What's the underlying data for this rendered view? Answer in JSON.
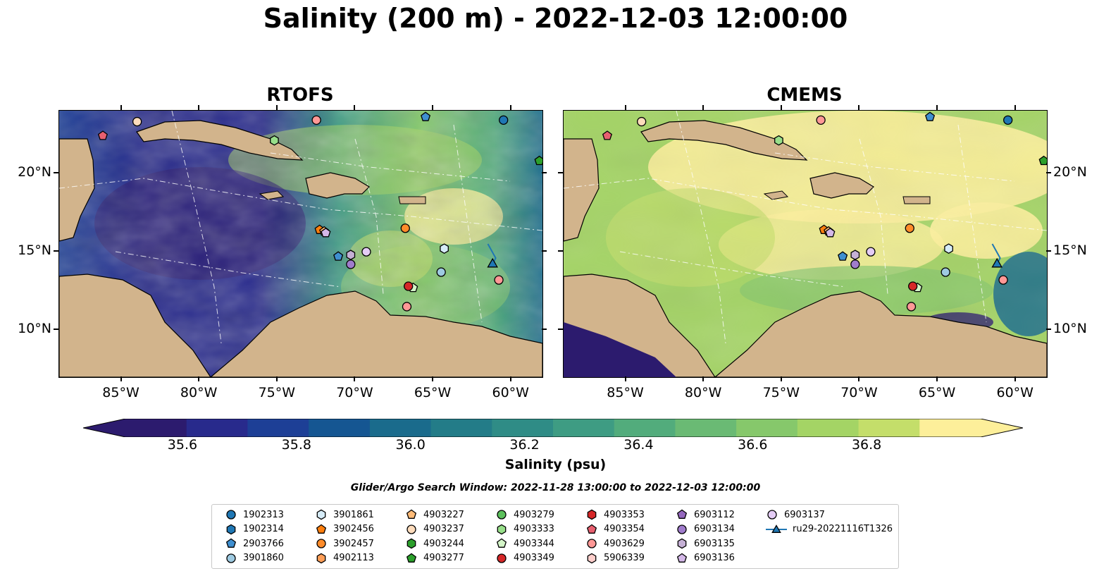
{
  "title": "Salinity (200 m) - 2022-12-03 12:00:00",
  "panels": [
    {
      "title": "RTOFS",
      "style": "rtofs"
    },
    {
      "title": "CMEMS",
      "style": "cmems"
    }
  ],
  "map": {
    "lon_range": [
      -89,
      -58
    ],
    "lat_range": [
      7,
      24
    ],
    "lon_ticks": [
      "85°W",
      "80°W",
      "75°W",
      "70°W",
      "65°W",
      "60°W"
    ],
    "lat_ticks": [
      "20°N",
      "15°N",
      "10°N"
    ],
    "lon_tick_values": [
      -85,
      -80,
      -75,
      -70,
      -65,
      -60
    ],
    "lat_tick_values": [
      20,
      15,
      10
    ],
    "land_color": "#d2b48c",
    "shelf_color": "#91b4e0"
  },
  "colorbar": {
    "label": "Salinity (psu)",
    "min": 35.5,
    "max": 37.0,
    "step": 0.1,
    "ticks": [
      "35.6",
      "35.8",
      "36.0",
      "36.2",
      "36.4",
      "36.6",
      "36.8"
    ],
    "tick_values": [
      35.6,
      35.8,
      36.0,
      36.2,
      36.4,
      36.6,
      36.8
    ],
    "colors": [
      "#2c1b6e",
      "#282a8c",
      "#1d3f96",
      "#155692",
      "#1a6b8c",
      "#237c88",
      "#2f8c86",
      "#3e9c83",
      "#52ac7c",
      "#6aba74",
      "#86c86b",
      "#a4d465",
      "#c4de6a",
      "#fdef9a"
    ],
    "extend_min_color": "#2c1b6e",
    "extend_max_color": "#fdef9a"
  },
  "search_window": "Glider/Argo Search Window: 2022-11-28 13:00:00 to 2022-12-03 12:00:00",
  "legend": [
    {
      "label": "1902313",
      "marker": "circle",
      "color": "#1f77b4"
    },
    {
      "label": "1902314",
      "marker": "hexagon",
      "color": "#1f77b4"
    },
    {
      "label": "2903766",
      "marker": "pentagon",
      "color": "#3f8fd0"
    },
    {
      "label": "3901860",
      "marker": "circle",
      "color": "#9ecae1"
    },
    {
      "label": "3901861",
      "marker": "hexagon",
      "color": "#d6ecf8"
    },
    {
      "label": "3902456",
      "marker": "pentagon",
      "color": "#ff7f0e"
    },
    {
      "label": "3902457",
      "marker": "circle",
      "color": "#ff8c2a"
    },
    {
      "label": "4902113",
      "marker": "hexagon",
      "color": "#ff9e57"
    },
    {
      "label": "4903227",
      "marker": "pentagon",
      "color": "#ffbb78"
    },
    {
      "label": "4903237",
      "marker": "circle",
      "color": "#fddcbc"
    },
    {
      "label": "4903244",
      "marker": "hexagon",
      "color": "#2ca02c"
    },
    {
      "label": "4903277",
      "marker": "pentagon",
      "color": "#2ca02c"
    },
    {
      "label": "4903279",
      "marker": "circle",
      "color": "#5cc05c"
    },
    {
      "label": "4903333",
      "marker": "hexagon",
      "color": "#98df8a"
    },
    {
      "label": "4903344",
      "marker": "pentagon",
      "color": "#d4f5c8"
    },
    {
      "label": "4903349",
      "marker": "circle",
      "color": "#d62728"
    },
    {
      "label": "4903353",
      "marker": "hexagon",
      "color": "#d62728"
    },
    {
      "label": "4903354",
      "marker": "pentagon",
      "color": "#e86070"
    },
    {
      "label": "4903629",
      "marker": "circle",
      "color": "#ff9896"
    },
    {
      "label": "5906339",
      "marker": "hexagon",
      "color": "#ffcfcc"
    },
    {
      "label": "6903112",
      "marker": "pentagon",
      "color": "#9467bd"
    },
    {
      "label": "6903134",
      "marker": "circle",
      "color": "#a07ccc"
    },
    {
      "label": "6903135",
      "marker": "hexagon",
      "color": "#c5b0d5"
    },
    {
      "label": "6903136",
      "marker": "pentagon",
      "color": "#d4b8e8"
    },
    {
      "label": "6903137",
      "marker": "circle",
      "color": "#e4ccf5"
    },
    {
      "label": "ru29-20221116T1326",
      "marker": "triangle-line",
      "color": "#1f77b4"
    }
  ],
  "floats": [
    {
      "label": "1902313",
      "lon": -60.5,
      "lat": 23.4
    },
    {
      "label": "2903766",
      "lon": -65.5,
      "lat": 23.6
    },
    {
      "label": "3901860",
      "lon": -64.5,
      "lat": 13.7
    },
    {
      "label": "3901861",
      "lon": -64.3,
      "lat": 15.2
    },
    {
      "label": "3902456",
      "lon": -72.3,
      "lat": 16.4
    },
    {
      "label": "3902457",
      "lon": -66.8,
      "lat": 16.5
    },
    {
      "label": "4903227",
      "lon": -72.0,
      "lat": 16.3
    },
    {
      "label": "4903237",
      "lon": -84.0,
      "lat": 23.3
    },
    {
      "label": "4903277",
      "lon": -58.2,
      "lat": 20.8
    },
    {
      "label": "4903333",
      "lon": -75.2,
      "lat": 22.1
    },
    {
      "label": "4903344",
      "lon": -66.3,
      "lat": 12.7
    },
    {
      "label": "4903349",
      "lon": -66.6,
      "lat": 12.8
    },
    {
      "label": "4903354",
      "lon": -86.2,
      "lat": 22.4
    },
    {
      "label": "4903629",
      "lon": -66.7,
      "lat": 11.5
    },
    {
      "label": "4903629",
      "lon": -72.5,
      "lat": 23.4
    },
    {
      "label": "4903629",
      "lon": -60.8,
      "lat": 13.2
    },
    {
      "label": "6903134",
      "lon": -70.3,
      "lat": 14.2
    },
    {
      "label": "6903135",
      "lon": -70.3,
      "lat": 14.8
    },
    {
      "label": "6903136",
      "lon": -71.9,
      "lat": 16.2
    },
    {
      "label": "6903137",
      "lon": -69.3,
      "lat": 15.0
    },
    {
      "label": "2903766",
      "lon": -71.1,
      "lat": 14.7
    }
  ],
  "glider_track": {
    "label": "ru29-20221116T1326",
    "points": [
      [
        -61.5,
        15.5
      ],
      [
        -61.0,
        14.6
      ],
      [
        -61.2,
        14.2
      ]
    ]
  }
}
